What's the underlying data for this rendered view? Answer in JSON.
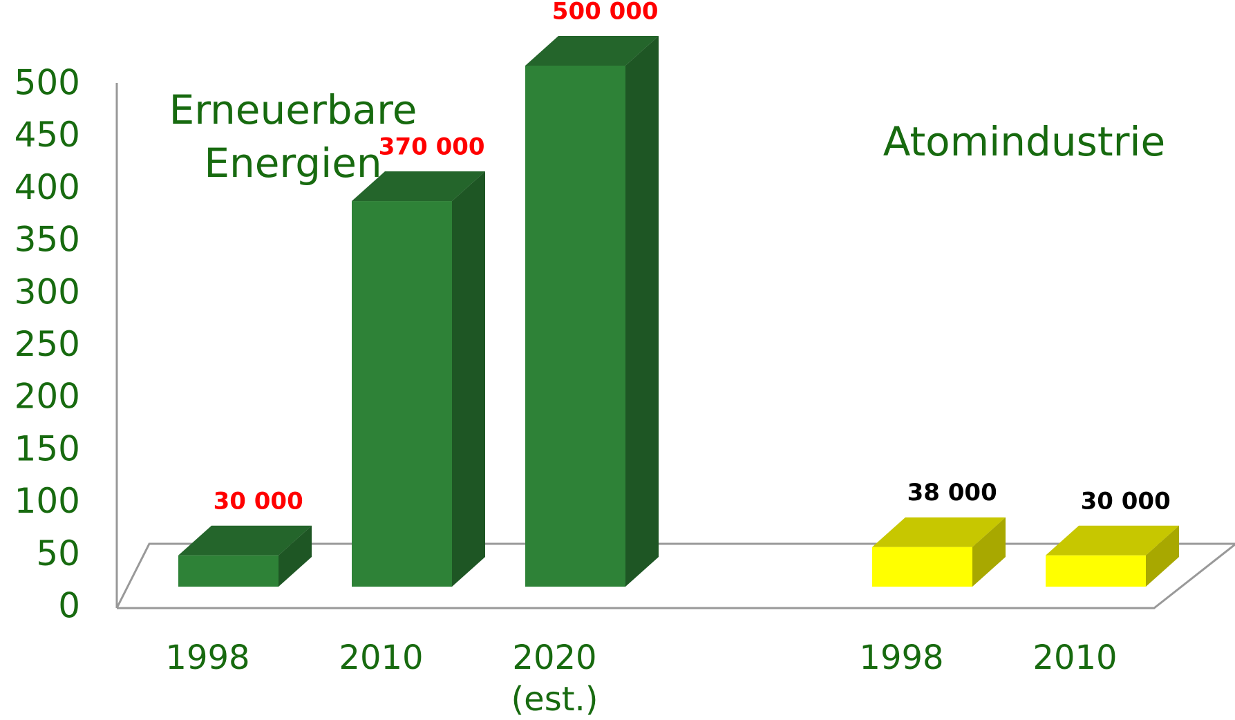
{
  "chart_data": {
    "type": "bar3d",
    "categories": [
      "1998",
      "2010",
      "2020 (est.)",
      null,
      "1998",
      "2010"
    ],
    "series": [
      {
        "name": "Erneuerbare Energien",
        "color": "#2e8237",
        "label_color": "#ff0000",
        "values": [
          30,
          370,
          500,
          null,
          null,
          null
        ],
        "value_labels": [
          "30 000",
          "370 000",
          "500 000",
          null,
          null,
          null
        ]
      },
      {
        "name": "Atomindustrie",
        "color": "#ffff00",
        "label_color": "#000000",
        "values": [
          null,
          null,
          null,
          null,
          38,
          30
        ],
        "value_labels": [
          null,
          null,
          null,
          null,
          "38 000",
          "30 000"
        ]
      }
    ],
    "ylim": [
      0,
      500
    ],
    "yticks": [
      0,
      50,
      100,
      150,
      200,
      250,
      300,
      350,
      400,
      450,
      500
    ]
  }
}
